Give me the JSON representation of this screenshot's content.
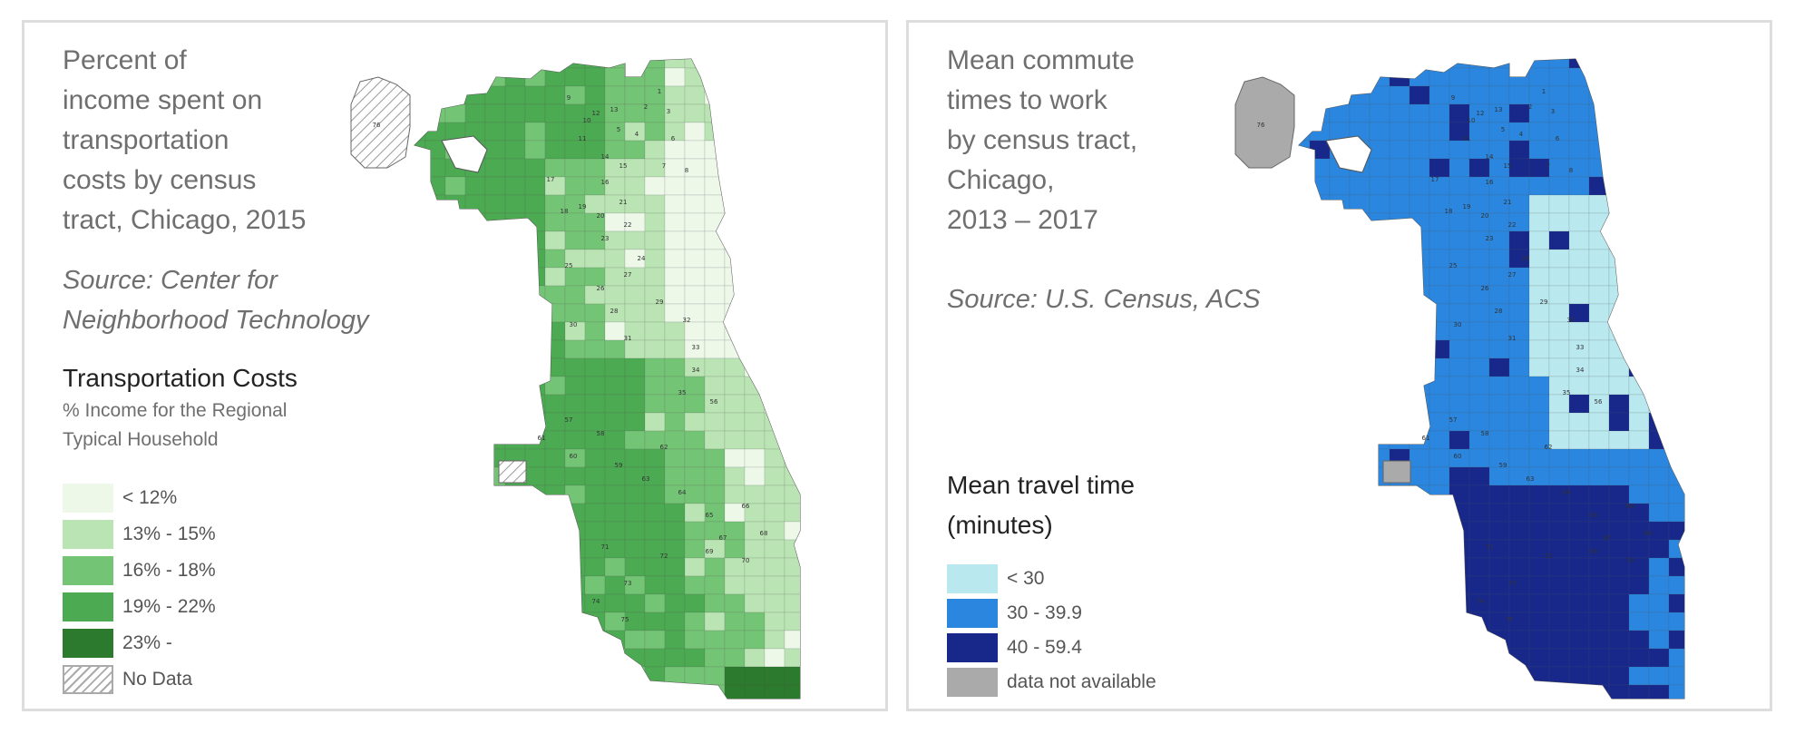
{
  "left_panel": {
    "title_lines": [
      "Percent of",
      "income spent on",
      "transportation",
      "costs by census",
      "tract, Chicago, 2015"
    ],
    "source_lines": [
      "Source: Center for",
      "Neighborhood Technology"
    ],
    "legend": {
      "title": "Transportation Costs",
      "subtitle_lines": [
        "% Income for the Regional",
        "Typical Household"
      ],
      "items": [
        {
          "label": "< 12%",
          "color": "#edf8e9"
        },
        {
          "label": "13% - 15%",
          "color": "#bae4b3"
        },
        {
          "label": "16% - 18%",
          "color": "#74c476"
        },
        {
          "label": "19% - 22%",
          "color": "#4caa52"
        },
        {
          "label": "23% -",
          "color": "#2c7a2e"
        },
        {
          "label": "No Data",
          "color": "hatch"
        }
      ]
    },
    "map_labels": [
      "76",
      "1",
      "2",
      "3",
      "4",
      "5",
      "6",
      "7",
      "8",
      "9",
      "10",
      "11",
      "12",
      "13",
      "14",
      "15",
      "16",
      "17",
      "18",
      "19",
      "20",
      "21",
      "22",
      "23",
      "24",
      "25",
      "26",
      "27",
      "28",
      "29",
      "30",
      "31",
      "32",
      "33",
      "34",
      "35",
      "56",
      "57",
      "58",
      "59",
      "60",
      "61",
      "62",
      "63",
      "64",
      "65",
      "66",
      "67",
      "68",
      "69",
      "70",
      "71",
      "72",
      "73",
      "74",
      "75"
    ]
  },
  "right_panel": {
    "title_lines": [
      "Mean commute",
      "times to work",
      "by census tract,",
      "Chicago,",
      "2013 – 2017"
    ],
    "source_lines": [
      "Source: U.S. Census, ACS"
    ],
    "legend": {
      "title_lines": [
        "Mean travel time",
        "(minutes)"
      ],
      "items": [
        {
          "label": "< 30",
          "color": "#b9e9ef"
        },
        {
          "label": "30 - 39.9",
          "color": "#2a86de"
        },
        {
          "label": "40 - 59.4",
          "color": "#17288a"
        },
        {
          "label": "data not available",
          "color": "#aaaaaa"
        }
      ]
    },
    "map_labels": [
      "76",
      "1",
      "2",
      "3",
      "4",
      "5",
      "6",
      "7",
      "8",
      "9",
      "10",
      "11",
      "12",
      "13",
      "14",
      "15",
      "16",
      "17",
      "18",
      "19",
      "20",
      "21",
      "22",
      "23",
      "24",
      "25",
      "26",
      "27",
      "28",
      "29",
      "30",
      "31",
      "32",
      "33",
      "34",
      "35",
      "56",
      "57",
      "58",
      "59",
      "60",
      "61",
      "62",
      "63",
      "64",
      "65",
      "66",
      "67",
      "68",
      "69",
      "70",
      "71",
      "72",
      "73",
      "74",
      "75"
    ]
  }
}
